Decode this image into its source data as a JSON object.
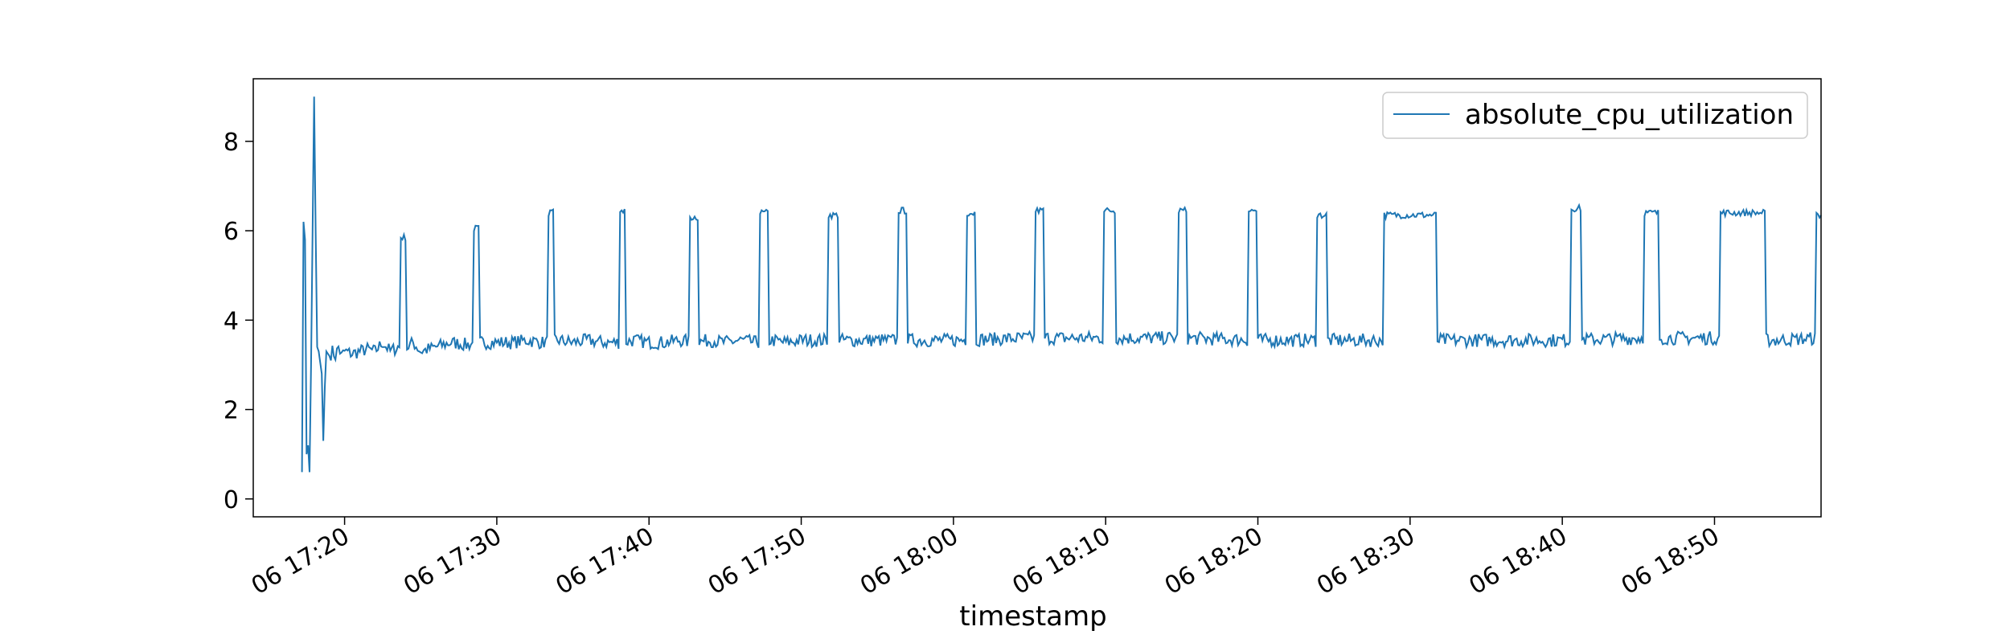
{
  "chart_data": {
    "type": "line",
    "title": "",
    "xlabel": "timestamp",
    "ylabel": "",
    "grid": false,
    "legend_placement": "top-right",
    "x_start": "2015-06-06 17:14",
    "x_end": "2015-06-06 18:57",
    "sample_interval_minutes": 0.1,
    "ylim": [
      -0.4,
      9.4
    ],
    "yticks": [
      0,
      2,
      4,
      6,
      8
    ],
    "xticks": [
      {
        "time": "2015-06-06 17:20",
        "label": "06 17:20"
      },
      {
        "time": "2015-06-06 17:30",
        "label": "06 17:30"
      },
      {
        "time": "2015-06-06 17:40",
        "label": "06 17:40"
      },
      {
        "time": "2015-06-06 17:50",
        "label": "06 17:50"
      },
      {
        "time": "2015-06-06 18:00",
        "label": "06 18:00"
      },
      {
        "time": "2015-06-06 18:10",
        "label": "06 18:10"
      },
      {
        "time": "2015-06-06 18:20",
        "label": "06 18:20"
      },
      {
        "time": "2015-06-06 18:30",
        "label": "06 18:30"
      },
      {
        "time": "2015-06-06 18:40",
        "label": "06 18:40"
      },
      {
        "time": "2015-06-06 18:50",
        "label": "06 18:50"
      }
    ],
    "series": [
      {
        "name": "absolute_cpu_utilization",
        "color": "#1f77b4",
        "points": [
          [
            "2015-06-06 17:17:12",
            0.6
          ],
          [
            "2015-06-06 17:17:18",
            6.2
          ],
          [
            "2015-06-06 17:17:24",
            5.8
          ],
          [
            "2015-06-06 17:17:30",
            1.0
          ],
          [
            "2015-06-06 17:17:36",
            1.2
          ],
          [
            "2015-06-06 17:17:42",
            0.6
          ],
          [
            "2015-06-06 17:17:48",
            3.0
          ],
          [
            "2015-06-06 17:17:54",
            6.0
          ],
          [
            "2015-06-06 17:18:00",
            9.0
          ],
          [
            "2015-06-06 17:18:06",
            6.0
          ],
          [
            "2015-06-06 17:18:12",
            3.4
          ],
          [
            "2015-06-06 17:18:18",
            3.3
          ],
          [
            "2015-06-06 17:18:30",
            2.8
          ],
          [
            "2015-06-06 17:18:36",
            1.3
          ],
          [
            "2015-06-06 17:18:42",
            2.5
          ],
          [
            "2015-06-06 17:18:48",
            3.3
          ],
          [
            "2015-06-06 17:19:00",
            3.2
          ],
          [
            "2015-06-06 17:19:12",
            3.3
          ],
          [
            "2015-06-06 17:19:24",
            3.2
          ],
          [
            "2015-06-06 17:19:36",
            3.4
          ],
          [
            "2015-06-06 17:19:48",
            3.2
          ],
          [
            "2015-06-06 17:20:00",
            3.3
          ],
          [
            "2015-06-06 17:20:30",
            3.25
          ],
          [
            "2015-06-06 17:21:00",
            3.3
          ],
          [
            "2015-06-06 17:21:30",
            3.35
          ],
          [
            "2015-06-06 17:22:00",
            3.3
          ],
          [
            "2015-06-06 17:22:30",
            3.5
          ],
          [
            "2015-06-06 17:23:00",
            3.3
          ],
          [
            "2015-06-06 17:23:30",
            3.4
          ],
          [
            "2015-06-06 17:24:00",
            3.35
          ],
          [
            "2015-06-06 17:24:30",
            3.5
          ],
          [
            "2015-06-06 17:25:00",
            3.3
          ],
          [
            "2015-06-06 17:26:00",
            3.4
          ],
          [
            "2015-06-06 17:27:00",
            3.5
          ],
          [
            "2015-06-06 17:28:00",
            3.45
          ],
          [
            "2015-06-06 17:29:00",
            3.5
          ],
          [
            "2015-06-06 17:30:00",
            3.5
          ],
          [
            "2015-06-06 17:31:00",
            3.5
          ],
          [
            "2015-06-06 17:32:00",
            3.55
          ],
          [
            "2015-06-06 17:33:00",
            3.5
          ],
          [
            "2015-06-06 17:34:00",
            3.55
          ],
          [
            "2015-06-06 17:35:00",
            3.5
          ],
          [
            "2015-06-06 17:36:00",
            3.55
          ],
          [
            "2015-06-06 17:37:00",
            3.5
          ],
          [
            "2015-06-06 17:38:00",
            3.5
          ],
          [
            "2015-06-06 17:39:00",
            3.55
          ],
          [
            "2015-06-06 17:40:00",
            3.5
          ],
          [
            "2015-06-06 17:41:00",
            3.5
          ],
          [
            "2015-06-06 17:42:00",
            3.55
          ],
          [
            "2015-06-06 17:43:00",
            3.5
          ],
          [
            "2015-06-06 17:44:00",
            3.55
          ],
          [
            "2015-06-06 17:45:00",
            3.5
          ],
          [
            "2015-06-06 17:46:00",
            3.55
          ],
          [
            "2015-06-06 17:47:00",
            3.5
          ],
          [
            "2015-06-06 17:48:00",
            3.55
          ],
          [
            "2015-06-06 17:49:00",
            3.5
          ],
          [
            "2015-06-06 17:50:00",
            3.55
          ],
          [
            "2015-06-06 17:55:00",
            3.55
          ],
          [
            "2015-06-06 18:00:00",
            3.55
          ],
          [
            "2015-06-06 18:05:00",
            3.6
          ],
          [
            "2015-06-06 18:10:00",
            3.6
          ],
          [
            "2015-06-06 18:15:00",
            3.6
          ],
          [
            "2015-06-06 18:20:00",
            3.55
          ],
          [
            "2015-06-06 18:25:00",
            3.55
          ],
          [
            "2015-06-06 18:28:00",
            3.55
          ],
          [
            "2015-06-06 18:32:00",
            3.55
          ],
          [
            "2015-06-06 18:35:00",
            3.55
          ],
          [
            "2015-06-06 18:38:00",
            3.55
          ],
          [
            "2015-06-06 18:40:00",
            3.55
          ],
          [
            "2015-06-06 18:45:00",
            3.6
          ],
          [
            "2015-06-06 18:50:00",
            3.6
          ],
          [
            "2015-06-06 18:54:00",
            3.55
          ],
          [
            "2015-06-06 18:57:00",
            3.6
          ]
        ],
        "spikes": [
          {
            "start": "2015-06-06 17:23:42",
            "peak": 5.85,
            "end": "2015-06-06 17:24:00"
          },
          {
            "start": "2015-06-06 17:28:30",
            "peak": 6.05,
            "end": "2015-06-06 17:28:48"
          },
          {
            "start": "2015-06-06 17:33:24",
            "peak": 6.4,
            "end": "2015-06-06 17:33:42"
          },
          {
            "start": "2015-06-06 17:38:06",
            "peak": 6.45,
            "end": "2015-06-06 17:38:24"
          },
          {
            "start": "2015-06-06 17:42:42",
            "peak": 6.3,
            "end": "2015-06-06 17:43:12"
          },
          {
            "start": "2015-06-06 17:47:18",
            "peak": 6.4,
            "end": "2015-06-06 17:47:48"
          },
          {
            "start": "2015-06-06 17:51:48",
            "peak": 6.35,
            "end": "2015-06-06 17:52:24"
          },
          {
            "start": "2015-06-06 17:56:24",
            "peak": 6.45,
            "end": "2015-06-06 17:56:54"
          },
          {
            "start": "2015-06-06 18:00:54",
            "peak": 6.4,
            "end": "2015-06-06 18:01:24"
          },
          {
            "start": "2015-06-06 18:05:24",
            "peak": 6.45,
            "end": "2015-06-06 18:05:54"
          },
          {
            "start": "2015-06-06 18:09:54",
            "peak": 6.45,
            "end": "2015-06-06 18:10:36"
          },
          {
            "start": "2015-06-06 18:14:48",
            "peak": 6.45,
            "end": "2015-06-06 18:15:18"
          },
          {
            "start": "2015-06-06 18:19:24",
            "peak": 6.45,
            "end": "2015-06-06 18:19:54"
          },
          {
            "start": "2015-06-06 18:23:54",
            "peak": 6.35,
            "end": "2015-06-06 18:24:30"
          },
          {
            "start": "2015-06-06 18:28:18",
            "peak": 6.35,
            "end": "2015-06-06 18:31:42"
          },
          {
            "start": "2015-06-06 18:40:36",
            "peak": 6.5,
            "end": "2015-06-06 18:41:12"
          },
          {
            "start": "2015-06-06 18:45:24",
            "peak": 6.4,
            "end": "2015-06-06 18:46:18"
          },
          {
            "start": "2015-06-06 18:50:24",
            "peak": 6.4,
            "end": "2015-06-06 18:53:18"
          },
          {
            "start": "2015-06-06 18:56:42",
            "peak": 6.35,
            "end": "2015-06-06 18:57:00"
          }
        ]
      }
    ]
  }
}
